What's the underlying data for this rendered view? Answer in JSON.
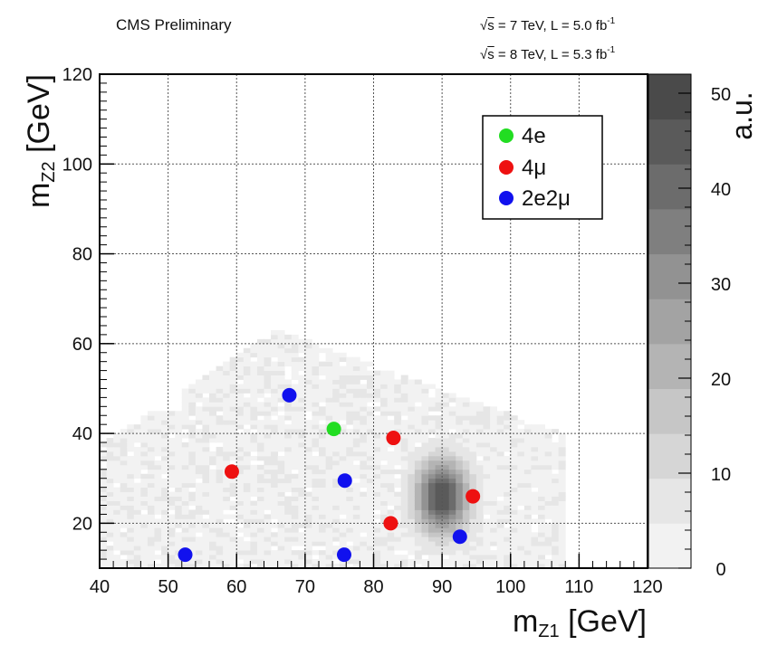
{
  "header": {
    "experiment_label": "CMS Preliminary",
    "energy_line_1": {
      "sqrt_s": "s",
      "text": " = 7 TeV, L = 5.0 fb",
      "sup": "-1"
    },
    "energy_line_2": {
      "sqrt_s": "s",
      "text": " = 8 TeV, L = 5.3 fb",
      "sup": "-1"
    }
  },
  "chart_data": {
    "type": "scatter",
    "title": "",
    "xlabel_main": "m",
    "xlabel_sub": "Z1",
    "xlabel_unit": " [GeV]",
    "ylabel_main": "m",
    "ylabel_sub": "Z2",
    "ylabel_unit": " [GeV]",
    "xlim": [
      40,
      120
    ],
    "ylim": [
      10,
      120
    ],
    "xticks": [
      40,
      50,
      60,
      70,
      80,
      90,
      100,
      110,
      120
    ],
    "yticks": [
      20,
      40,
      60,
      80,
      100,
      120
    ],
    "grid": true,
    "legend_position": "top-right",
    "series": [
      {
        "name": "4e",
        "color": "#22dd22",
        "points": [
          [
            74.2,
            41
          ]
        ]
      },
      {
        "name": "4μ",
        "color": "#ee1111",
        "points": [
          [
            59.3,
            31.5
          ],
          [
            82.9,
            39
          ],
          [
            82.5,
            20
          ],
          [
            94.5,
            26
          ]
        ]
      },
      {
        "name": "2e2μ",
        "color": "#1111ee",
        "points": [
          [
            67.7,
            48.5
          ],
          [
            75.8,
            29.5
          ],
          [
            52.5,
            13
          ],
          [
            75.7,
            13
          ],
          [
            92.6,
            17
          ]
        ]
      }
    ],
    "background": {
      "type": "heatmap",
      "label": "a.u.",
      "zlim": [
        0,
        52
      ],
      "colorbar_ticks": [
        0,
        10,
        20,
        30,
        40,
        50
      ],
      "color_levels": [
        "#f2f2f2",
        "#e6e6e6",
        "#d6d6d6",
        "#c6c6c6",
        "#b4b4b4",
        "#a3a3a3",
        "#929292",
        "#7f7f7f",
        "#6c6c6c",
        "#5a5a5a",
        "#4a4a4a"
      ],
      "peak_region_center": [
        90,
        26
      ]
    }
  }
}
